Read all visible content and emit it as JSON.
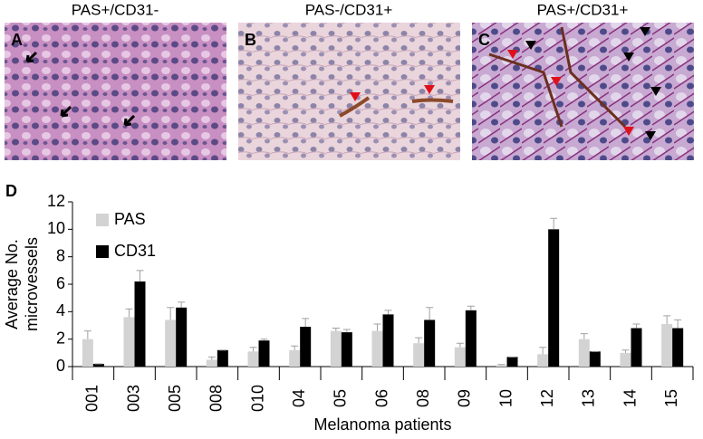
{
  "panels": [
    {
      "letter": "A",
      "title": "PAS+/CD31-"
    },
    {
      "letter": "B",
      "title": "PAS-/CD31+"
    },
    {
      "letter": "C",
      "title": "PAS+/CD31+"
    }
  ],
  "chart_label": "D",
  "chart_data": {
    "type": "bar",
    "y_label": [
      "Average No.",
      "microvessels"
    ],
    "x_label": "Melanoma patients",
    "categories": [
      "001",
      "003",
      "005",
      "008",
      "010",
      "04",
      "05",
      "06",
      "08",
      "09",
      "10",
      "12",
      "13",
      "14",
      "15"
    ],
    "series": [
      {
        "name": "PAS",
        "color": "#d3d3d3",
        "values": [
          2.0,
          3.6,
          3.4,
          0.5,
          1.1,
          1.2,
          2.6,
          2.6,
          1.7,
          1.4,
          0.1,
          0.9,
          2.0,
          1.0,
          3.1
        ],
        "errors": [
          0.6,
          0.6,
          0.9,
          0.2,
          0.3,
          0.3,
          0.2,
          0.5,
          0.4,
          0.3,
          0.05,
          0.5,
          0.4,
          0.2,
          0.6
        ]
      },
      {
        "name": "CD31",
        "color": "#000000",
        "values": [
          0.2,
          6.2,
          4.3,
          1.2,
          1.9,
          2.9,
          2.5,
          3.8,
          3.4,
          4.1,
          0.7,
          10.0,
          1.1,
          2.8,
          2.8
        ],
        "errors": [
          0.0,
          0.8,
          0.4,
          0.0,
          0.1,
          0.6,
          0.2,
          0.3,
          0.9,
          0.3,
          0.0,
          0.8,
          0.0,
          0.3,
          0.6
        ]
      }
    ],
    "ylim": [
      0,
      12
    ],
    "yticks": [
      0,
      2,
      4,
      6,
      8,
      10,
      12
    ],
    "legend": "upper-left"
  }
}
